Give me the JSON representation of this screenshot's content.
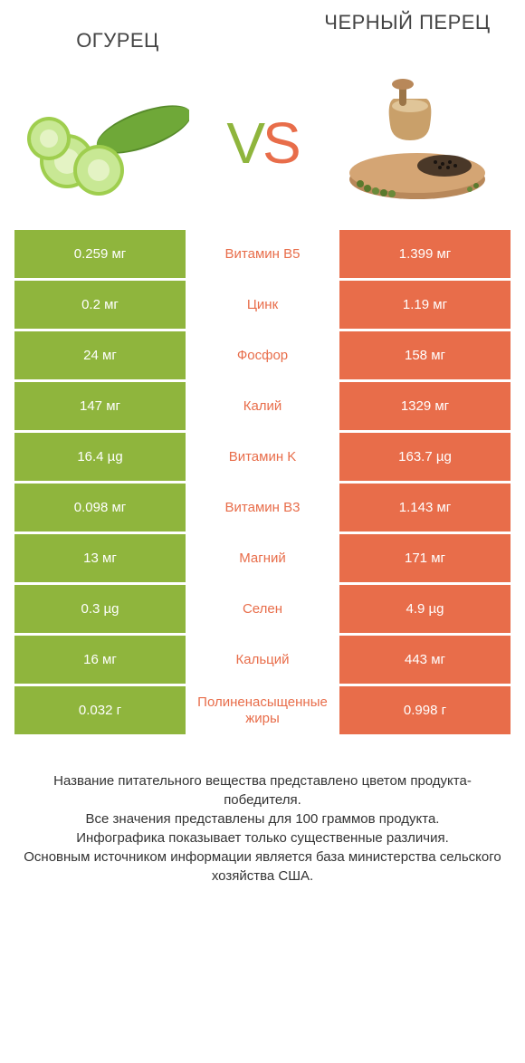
{
  "colors": {
    "left": "#8fb53d",
    "right": "#e86d4a",
    "mid_bg": "#ffffff",
    "text_dark": "#333333"
  },
  "header": {
    "left_title": "ОГУРЕЦ",
    "right_title": "ЧЕРНЫЙ ПЕРЕЦ",
    "vs_v": "V",
    "vs_s": "S"
  },
  "rows": [
    {
      "left": "0.259 мг",
      "label": "Витамин B5",
      "right": "1.399 мг",
      "winner": "right"
    },
    {
      "left": "0.2 мг",
      "label": "Цинк",
      "right": "1.19 мг",
      "winner": "right"
    },
    {
      "left": "24 мг",
      "label": "Фосфор",
      "right": "158 мг",
      "winner": "right"
    },
    {
      "left": "147 мг",
      "label": "Калий",
      "right": "1329 мг",
      "winner": "right"
    },
    {
      "left": "16.4 µg",
      "label": "Витамин K",
      "right": "163.7 µg",
      "winner": "right"
    },
    {
      "left": "0.098 мг",
      "label": "Витамин B3",
      "right": "1.143 мг",
      "winner": "right"
    },
    {
      "left": "13 мг",
      "label": "Магний",
      "right": "171 мг",
      "winner": "right"
    },
    {
      "left": "0.3 µg",
      "label": "Селен",
      "right": "4.9 µg",
      "winner": "right"
    },
    {
      "left": "16 мг",
      "label": "Кальций",
      "right": "443 мг",
      "winner": "right"
    },
    {
      "left": "0.032 г",
      "label": "Полиненасыщенные жиры",
      "right": "0.998 г",
      "winner": "right"
    }
  ],
  "footer": {
    "line1": "Название питательного вещества представлено цветом продукта-победителя.",
    "line2": "Все значения представлены для 100 граммов продукта.",
    "line3": "Инфографика показывает только существенные различия.",
    "line4": "Основным источником информации является база министерства сельского хозяйства США."
  }
}
